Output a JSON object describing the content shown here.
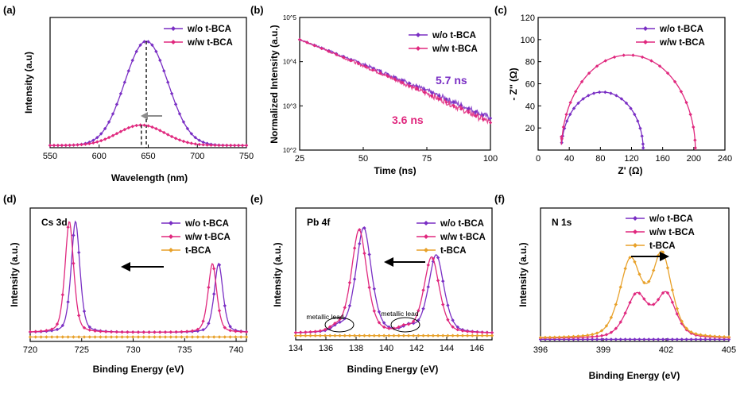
{
  "colors": {
    "wo": "#7a2fc4",
    "ww": "#e0287e",
    "tbca": "#e8a12a",
    "arrow_gray": "#8c8c8c",
    "axis": "#000000"
  },
  "chart_data": [
    {
      "panel": "(a)",
      "type": "line",
      "xlabel": "Wavelength (nm)",
      "ylabel": "Intensity (a.u)",
      "xlim": [
        550,
        750
      ],
      "ylim": [
        0,
        1.15
      ],
      "xticks": [
        550,
        600,
        650,
        700,
        750
      ],
      "legend": [
        "w/o t-BCA",
        "w/w t-BCA"
      ],
      "legend_position": "top-right",
      "annotations": [
        "dashed lines at peaks",
        "arrow pointing left"
      ],
      "series": [
        {
          "name": "w/o t-BCA",
          "color_key": "wo",
          "peak": 648,
          "width": 22,
          "amplitude": 0.92,
          "baseline": 0.02
        },
        {
          "name": "w/w t-BCA",
          "color_key": "ww",
          "peak": 643,
          "width": 24,
          "amplitude": 0.18,
          "baseline": 0.02
        }
      ]
    },
    {
      "panel": "(b)",
      "type": "line",
      "xlabel": "Time (ns)",
      "ylabel": "Normalized Intensity (a.u.)",
      "xlim": [
        25,
        100
      ],
      "ylim_log10": [
        2,
        5
      ],
      "xticks": [
        25,
        50,
        75,
        100
      ],
      "yticks": [
        "10^2",
        "10^3",
        "10^4",
        "10^5"
      ],
      "legend": [
        "w/o t-BCA",
        "w/w t-BCA"
      ],
      "legend_position": "top-right",
      "annotations": [
        "5.7 ns",
        "3.6 ns"
      ],
      "series": [
        {
          "name": "w/o t-BCA",
          "color_key": "wo",
          "start_log10": 4.5,
          "end_log10": 2.72
        },
        {
          "name": "w/w t-BCA",
          "color_key": "ww",
          "start_log10": 4.5,
          "end_log10": 2.62
        }
      ]
    },
    {
      "panel": "(c)",
      "type": "scatter",
      "xlabel": "Z' (Ω)",
      "ylabel": "- Z'' (Ω)",
      "xlim": [
        0,
        240
      ],
      "ylim": [
        0,
        120
      ],
      "xticks": [
        0,
        40,
        80,
        120,
        160,
        200,
        240
      ],
      "yticks": [
        20,
        40,
        60,
        80,
        100,
        120
      ],
      "legend": [
        "w/o t-BCA",
        "w/w t-BCA"
      ],
      "legend_position": "top-left",
      "series": [
        {
          "name": "w/o t-BCA",
          "color_key": "wo",
          "z_start": 30,
          "z_end": 135
        },
        {
          "name": "w/w t-BCA",
          "color_key": "ww",
          "z_start": 30,
          "z_end": 202
        }
      ]
    },
    {
      "panel": "(d)",
      "type": "line",
      "label": "Cs 3d",
      "xlabel": "Binding Energy (eV)",
      "ylabel": "Intensity (a.u.)",
      "xlim": [
        720,
        741
      ],
      "ylim": [
        0,
        1.2
      ],
      "xticks": [
        720,
        725,
        730,
        735,
        740
      ],
      "legend": [
        "w/o t-BCA",
        "w/w t-BCA",
        "t-BCA"
      ],
      "legend_position": "top-right",
      "series": [
        {
          "name": "w/o t-BCA",
          "color_key": "wo",
          "peaks": [
            [
              724.4,
              1.0,
              0.45
            ],
            [
              738.3,
              0.62,
              0.45
            ]
          ],
          "baseline": 0.08
        },
        {
          "name": "w/w t-BCA",
          "color_key": "ww",
          "peaks": [
            [
              723.8,
              1.0,
              0.45
            ],
            [
              737.7,
              0.62,
              0.45
            ]
          ],
          "baseline": 0.08
        },
        {
          "name": "t-BCA",
          "color_key": "tbca",
          "peaks": [],
          "baseline": 0.0
        }
      ]
    },
    {
      "panel": "(e)",
      "type": "line",
      "label": "Pb 4f",
      "xlabel": "Binding Energy (eV)",
      "ylabel": "Intensity (a.u.)",
      "xlim": [
        134,
        147
      ],
      "ylim": [
        0,
        1.25
      ],
      "xticks": [
        134,
        136,
        138,
        140,
        142,
        144,
        146
      ],
      "legend": [
        "w/o t-BCA",
        "w/w t-BCA",
        "t-BCA"
      ],
      "legend_position": "top-right",
      "annotations": [
        "metallic lead",
        "metallic lead"
      ],
      "series": [
        {
          "name": "w/o t-BCA",
          "color_key": "wo",
          "peaks": [
            [
              138.5,
              1.0,
              0.55
            ],
            [
              143.3,
              0.74,
              0.55
            ],
            [
              136.8,
              0.05,
              0.4
            ],
            [
              141.5,
              0.05,
              0.4
            ]
          ],
          "baseline": 0.06
        },
        {
          "name": "w/w t-BCA",
          "color_key": "ww",
          "peaks": [
            [
              138.2,
              0.98,
              0.55
            ],
            [
              143.0,
              0.72,
              0.55
            ],
            [
              136.6,
              0.04,
              0.4
            ],
            [
              141.2,
              0.04,
              0.4
            ]
          ],
          "baseline": 0.06
        },
        {
          "name": "t-BCA",
          "color_key": "tbca",
          "peaks": [],
          "baseline": 0.0
        }
      ]
    },
    {
      "panel": "(f)",
      "type": "line",
      "label": "N 1s",
      "xlabel": "Binding Energy (eV)",
      "ylabel": "Intensity (a.u.)",
      "xlim": [
        396,
        405
      ],
      "ylim": [
        0,
        1.3
      ],
      "xticks": [
        396,
        399,
        402,
        405
      ],
      "legend": [
        "w/o t-BCA",
        "w/w t-BCA",
        "t-BCA"
      ],
      "legend_position": "top-left",
      "annotations": [
        "arrow pointing right"
      ],
      "series": [
        {
          "name": "w/o t-BCA",
          "color_key": "wo",
          "peaks": [],
          "baseline": 0.0
        },
        {
          "name": "w/w t-BCA",
          "color_key": "ww",
          "peaks": [
            [
              400.6,
              0.42,
              0.55
            ],
            [
              402.0,
              0.42,
              0.5
            ]
          ],
          "baseline": 0.03
        },
        {
          "name": "t-BCA",
          "color_key": "tbca",
          "peaks": [
            [
              400.3,
              0.75,
              0.55
            ],
            [
              401.8,
              0.8,
              0.5
            ]
          ],
          "baseline": 0.03
        }
      ]
    }
  ]
}
